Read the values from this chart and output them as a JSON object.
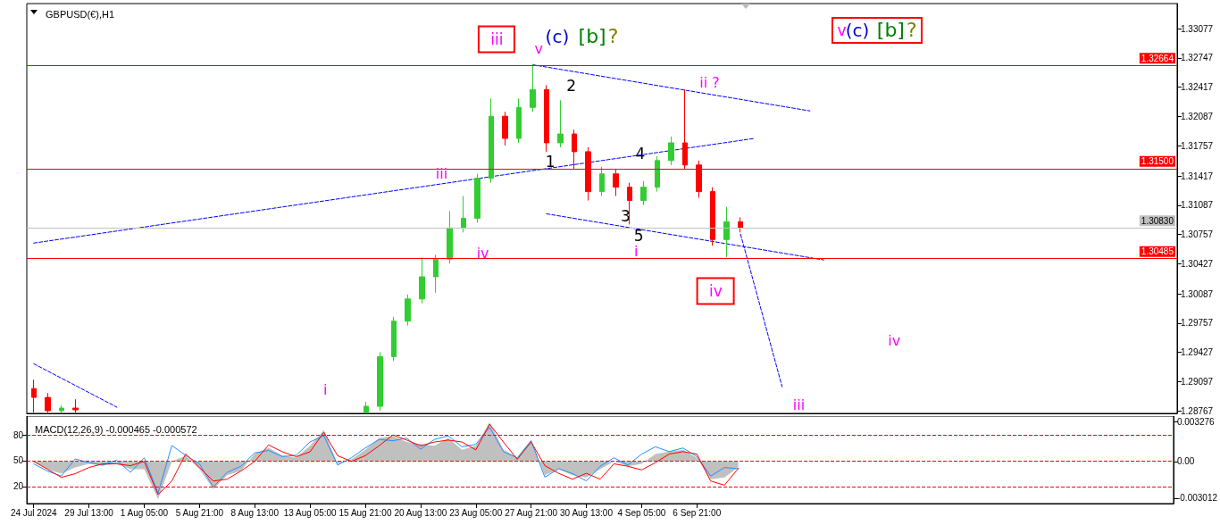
{
  "chart_data": [
    {
      "type": "candlestick",
      "title": "GBPUSD(€),H1",
      "categories": [
        null,
        null,
        null,
        null,
        null,
        null,
        null,
        null,
        null,
        null,
        null,
        null,
        null,
        null,
        null,
        null,
        null,
        null,
        null,
        null,
        null,
        null,
        null,
        null,
        null,
        null,
        null,
        null,
        null,
        null,
        null,
        null,
        null,
        null,
        null,
        null,
        null,
        null,
        null,
        null,
        null,
        null,
        null,
        null,
        null,
        null,
        null,
        null,
        null,
        null,
        null,
        null,
        null,
        null,
        null,
        null,
        null,
        null,
        null,
        null,
        null,
        null,
        null,
        null,
        null,
        null,
        null,
        null,
        null,
        null,
        null,
        null,
        null,
        null,
        null,
        null,
        null,
        null,
        null,
        null,
        null,
        null,
        null
      ],
      "ohlc": [
        [
          1.2902,
          1.2912,
          1.2875,
          1.2892
        ],
        [
          1.2892,
          1.2897,
          1.2875,
          1.2877
        ],
        [
          1.2877,
          1.2883,
          1.2875,
          1.288
        ],
        [
          1.288,
          1.289,
          1.2875,
          1.2878
        ],
        null,
        null,
        null,
        null,
        null,
        null,
        null,
        null,
        null,
        null,
        null,
        null,
        null,
        null,
        null,
        null,
        null,
        null,
        null,
        null,
        [
          1.2875,
          1.2887,
          1.2875,
          1.2882
        ],
        [
          1.2882,
          1.2943,
          1.2877,
          1.2938
        ],
        [
          1.2938,
          1.2983,
          1.2933,
          1.2978
        ],
        [
          1.2978,
          1.3008,
          1.2973,
          1.3003
        ],
        [
          1.3003,
          1.305,
          1.2998,
          1.3028
        ],
        [
          1.3028,
          1.3053,
          1.301,
          1.3048
        ],
        [
          1.3048,
          1.3102,
          1.3043,
          1.3083
        ],
        [
          1.3083,
          1.3119,
          1.3078,
          1.3094
        ],
        [
          1.3094,
          1.3144,
          1.3089,
          1.3139
        ],
        [
          1.3139,
          1.3229,
          1.3134,
          1.3209
        ],
        [
          1.3209,
          1.3214,
          1.3176,
          1.3184
        ],
        [
          1.3184,
          1.3229,
          1.3179,
          1.3219
        ],
        [
          1.3219,
          1.3268,
          1.3214,
          1.3239
        ],
        [
          1.3239,
          1.3244,
          1.3169,
          1.3179
        ],
        [
          1.3179,
          1.3227,
          1.3174,
          1.3189
        ],
        [
          1.3189,
          1.3194,
          1.3149,
          1.3169
        ],
        [
          1.3169,
          1.3174,
          1.3114,
          1.3124
        ],
        [
          1.3124,
          1.3152,
          1.3119,
          1.3144
        ],
        [
          1.3144,
          1.3149,
          1.3119,
          1.3129
        ],
        [
          1.3129,
          1.3134,
          1.3087,
          1.3114
        ],
        [
          1.3114,
          1.3136,
          1.3109,
          1.3129
        ],
        [
          1.3129,
          1.3164,
          1.3124,
          1.3159
        ],
        [
          1.3159,
          1.3186,
          1.3154,
          1.3179
        ],
        [
          1.3179,
          1.3239,
          1.3149,
          1.3154
        ],
        [
          1.3154,
          1.3159,
          1.3117,
          1.3124
        ],
        [
          1.3124,
          1.3129,
          1.3063,
          1.307
        ],
        [
          1.307,
          1.3107,
          1.305,
          1.309
        ],
        [
          1.309,
          1.3095,
          1.3078,
          1.3083
        ],
        null,
        null,
        null,
        null,
        null,
        null,
        null,
        null,
        null,
        null,
        null,
        null,
        null,
        null,
        null,
        null,
        null,
        null,
        null,
        null,
        null,
        null,
        null,
        null,
        null,
        null,
        null,
        null,
        null,
        null,
        null
      ],
      "colors": [
        "#ff0000",
        "#ff0000",
        "#32cd32",
        "#ff0000",
        null,
        null,
        null,
        null,
        null,
        null,
        null,
        null,
        null,
        null,
        null,
        null,
        null,
        null,
        null,
        null,
        null,
        null,
        null,
        null,
        "#32cd32",
        "#32cd32",
        "#32cd32",
        "#32cd32",
        "#32cd32",
        "#32cd32",
        "#32cd32",
        "#32cd32",
        "#32cd32",
        "#32cd32",
        "#ff0000",
        "#32cd32",
        "#32cd32",
        "#ff0000",
        "#32cd32",
        "#ff0000",
        "#ff0000",
        "#32cd32",
        "#ff0000",
        "#ff0000",
        "#32cd32",
        "#32cd32",
        "#32cd32",
        "#ff0000",
        "#ff0000",
        "#ff0000",
        "#32cd32",
        "#ff0000",
        null,
        null,
        null,
        null,
        null,
        null,
        null,
        null,
        null,
        null,
        null,
        null,
        null,
        null,
        null,
        null,
        null,
        null,
        null,
        null,
        null,
        null,
        null,
        null,
        null,
        null,
        null,
        null,
        null,
        null,
        null
      ],
      "series": [
        {
          "type": "line",
          "color": "#0000ff",
          "line_style": "dashed",
          "values": [
            1.3066,
            null,
            null,
            null,
            null,
            null,
            null,
            null,
            null,
            null,
            null,
            null,
            null,
            null,
            null,
            null,
            null,
            null,
            null,
            null,
            null,
            null,
            null,
            null,
            null,
            null,
            null,
            null,
            null,
            null,
            null,
            null,
            null,
            null,
            null,
            null,
            null,
            null,
            null,
            null,
            null,
            null,
            null,
            null,
            null,
            null,
            null,
            null,
            null,
            null,
            null,
            null,
            1.3184,
            null,
            null,
            null,
            null,
            null,
            null,
            null,
            null,
            null,
            null,
            null,
            null,
            null,
            null,
            null,
            null,
            null,
            null,
            null,
            null,
            null,
            null,
            null,
            null,
            null,
            null,
            null,
            null,
            null,
            null
          ]
        },
        {
          "type": "line",
          "color": "#0000ff",
          "line_style": "dashed",
          "values": [
            null,
            null,
            null,
            null,
            null,
            null,
            null,
            null,
            null,
            null,
            null,
            null,
            null,
            null,
            null,
            null,
            null,
            null,
            null,
            null,
            null,
            null,
            null,
            null,
            null,
            null,
            null,
            null,
            null,
            null,
            null,
            null,
            null,
            null,
            null,
            null,
            1.3267,
            null,
            null,
            null,
            null,
            null,
            null,
            null,
            null,
            null,
            null,
            null,
            null,
            null,
            null,
            null,
            null,
            null,
            null,
            null,
            1.3215,
            null,
            null,
            null,
            null,
            null,
            null,
            null,
            null,
            null,
            null,
            null,
            null,
            null,
            null,
            null,
            null,
            null,
            null,
            null,
            null,
            null,
            null,
            null,
            null,
            null,
            null
          ]
        },
        {
          "type": "line",
          "color": "#0000ff",
          "line_style": "dashed",
          "values": [
            null,
            null,
            null,
            null,
            null,
            null,
            null,
            null,
            null,
            null,
            null,
            null,
            null,
            null,
            null,
            null,
            null,
            null,
            null,
            null,
            null,
            null,
            null,
            null,
            null,
            null,
            null,
            null,
            null,
            null,
            null,
            null,
            null,
            null,
            null,
            null,
            null,
            1.3099,
            null,
            null,
            null,
            null,
            null,
            null,
            null,
            null,
            null,
            null,
            null,
            null,
            null,
            null,
            null,
            null,
            null,
            null,
            null,
            1.3047,
            null,
            null,
            null,
            null,
            null,
            null,
            null,
            null,
            null,
            null,
            null,
            null,
            null,
            null,
            null,
            null,
            null,
            null,
            null,
            null,
            null,
            null,
            null,
            null,
            null
          ]
        },
        {
          "type": "line",
          "color": "#0000ff",
          "line_style": "dashed",
          "values": [
            1.293,
            null,
            null,
            null,
            null,
            null,
            1.2881,
            null,
            null,
            null,
            null,
            null,
            null,
            null,
            null,
            null,
            null,
            null,
            null,
            null,
            null,
            null,
            null,
            null,
            null,
            null,
            null,
            null,
            null,
            null,
            null,
            null,
            null,
            null,
            null,
            null,
            null,
            null,
            null,
            null,
            null,
            null,
            null,
            null,
            null,
            null,
            null,
            null,
            null,
            null,
            null,
            null,
            null,
            null,
            null,
            null,
            null,
            null,
            null,
            null,
            null,
            null,
            null,
            null,
            null,
            null,
            null,
            null,
            null,
            null,
            null,
            null,
            null,
            null,
            null,
            null,
            null,
            null,
            null,
            null,
            null,
            null,
            null
          ]
        },
        {
          "type": "line",
          "color": "#0000ff",
          "line_style": "dashed",
          "values": [
            null,
            null,
            null,
            null,
            null,
            null,
            null,
            null,
            null,
            null,
            null,
            null,
            null,
            null,
            null,
            null,
            null,
            null,
            null,
            null,
            null,
            null,
            null,
            null,
            null,
            null,
            null,
            null,
            null,
            null,
            null,
            null,
            null,
            null,
            null,
            null,
            null,
            null,
            null,
            null,
            null,
            null,
            null,
            null,
            null,
            null,
            null,
            null,
            null,
            null,
            null,
            1.3076,
            null,
            null,
            1.2904,
            null,
            null,
            null,
            null,
            null,
            null,
            null,
            null,
            null,
            null,
            null,
            null,
            null,
            null,
            null,
            null,
            null,
            null,
            null,
            null,
            null,
            null,
            null,
            null,
            null,
            null,
            null,
            null
          ]
        }
      ],
      "ref_lines": [
        {
          "axis": "y",
          "value": 1.32664,
          "label": "1.32664",
          "color": "#ff0000"
        },
        {
          "axis": "y",
          "value": 1.315,
          "label": "1.31500",
          "color": "#ff0000"
        },
        {
          "axis": "y",
          "value": 1.30485,
          "label": "1.30485",
          "color": "#ff0000"
        },
        {
          "axis": "y",
          "value": 1.3083,
          "label": "1.30830",
          "color": "#c0c0c0"
        }
      ],
      "annotations": [
        "iii",
        "v",
        "(c)",
        "[b]",
        "?",
        "2",
        "ii ?",
        "1",
        "4",
        "iii",
        "3",
        "5",
        "iv",
        "i",
        "iv",
        "iv",
        "iii",
        "i",
        "v",
        "(c)",
        "[b]",
        "?"
      ],
      "ylim": [
        1.2874,
        1.3336
      ],
      "yticks": [
        1.28767,
        1.29097,
        1.29427,
        1.29757,
        1.30087,
        1.30427,
        1.30757,
        1.31087,
        1.31417,
        1.31757,
        1.32087,
        1.32417,
        1.32747,
        1.33077
      ],
      "tick_labels": "y"
    },
    {
      "type": "line",
      "title": "MACD(12,26,9) -0.000465 -0.000572",
      "categories": [
        "24 Jul 2024",
        null,
        null,
        null,
        "29 Jul 13:00",
        null,
        null,
        null,
        "1 Aug 05:00",
        null,
        null,
        null,
        "5 Aug 21:00",
        null,
        null,
        null,
        "8 Aug 13:00",
        null,
        null,
        null,
        "13 Aug 05:00",
        null,
        null,
        null,
        "15 Aug 21:00",
        null,
        null,
        null,
        "20 Aug 13:00",
        null,
        null,
        null,
        "23 Aug 05:00",
        null,
        null,
        null,
        "27 Aug 21:00",
        null,
        null,
        null,
        "30 Aug 13:00",
        null,
        null,
        null,
        "4 Sep 05:00",
        null,
        null,
        null,
        "6 Sep 21:00",
        null,
        null,
        null,
        null,
        null,
        null,
        null,
        null,
        null,
        null,
        null,
        null,
        null,
        null,
        null,
        null,
        null,
        null,
        null,
        null,
        null,
        null,
        null,
        null,
        null,
        null,
        null,
        null,
        null,
        null,
        null,
        null,
        null,
        null
      ],
      "series": [
        {
          "type": "area",
          "color": "#c0c0c0",
          "values": [
            0,
            -0.00064,
            -0.00101,
            -0.0005,
            -0.0002,
            -0.00035,
            -0.0002,
            -0.00064,
            -0.00064,
            -0.00309,
            0,
            0.00047,
            -0.00064,
            -0.00227,
            -0.00114,
            -0.00079,
            0.00063,
            0.00111,
            0.00047,
            0.00032,
            0.00128,
            0.00256,
            -0.0002,
            0.00017,
            0.00095,
            0.00192,
            0.00209,
            0.00159,
            0.00143,
            0.00128,
            0.00192,
            0.00095,
            0.00128,
            0.0032,
            0.00095,
            0.00032,
            0.00175,
            -0.00114,
            -0.00064,
            -0.00114,
            -0.00131,
            -0.00064,
            0,
            -0.0004,
            -0.0002,
            0.0006,
            0.0008,
            0.00095,
            0.0003,
            -0.00146,
            -0.00131,
            -0.00047,
            null,
            null,
            null,
            null,
            null,
            null,
            null,
            null,
            null,
            null,
            null,
            null,
            null,
            null,
            null,
            null,
            null,
            null,
            null,
            null,
            null,
            null,
            null,
            null,
            null,
            null,
            null,
            null,
            null,
            null,
            null
          ]
        },
        {
          "type": "line",
          "color": "#1e90ff",
          "values": [
            -0.0002,
            -0.0008,
            -0.0012,
            0.0002,
            -0.0001,
            -0.0003,
            0.0001,
            -0.0009,
            0.0003,
            -0.0026,
            0.0013,
            0.0005,
            -0.0002,
            -0.0021,
            -0.0009,
            -0.0004,
            0.0007,
            0.0009,
            0.0004,
            0.0005,
            0.0016,
            0.0021,
            -0.0003,
            0.0003,
            0.0011,
            0.0018,
            0.0017,
            0.0019,
            0.001,
            0.0018,
            0.0021,
            0.0012,
            0.0014,
            0.0028,
            0.0008,
            0.0003,
            0.0017,
            -0.0013,
            -0.0006,
            -0.001,
            -0.0016,
            -0.0004,
            0.0003,
            -0.0003,
            0.0006,
            0.0012,
            0.0008,
            0.0011,
            0.0004,
            -0.0012,
            -0.0005,
            -0.0006,
            null,
            null,
            null,
            null,
            null,
            null,
            null,
            null,
            null,
            null,
            null,
            null,
            null,
            null,
            null,
            null,
            null,
            null,
            null,
            null,
            null,
            null,
            null,
            null,
            null,
            null,
            null,
            null,
            null,
            null,
            null
          ]
        },
        {
          "type": "line",
          "color": "#ff0000",
          "values": [
            0,
            -0.00064,
            -0.00131,
            -0.00101,
            -0.0005,
            -0.0002,
            -0.0002,
            -0.00035,
            0,
            -0.00272,
            -0.00161,
            0.00061,
            -0.0005,
            -0.00161,
            -0.00146,
            -0.00079,
            0,
            0.00135,
            0.00079,
            0.00039,
            0.00079,
            0.00239,
            0.00047,
            0,
            0.00047,
            0.00128,
            0.00217,
            0.00175,
            0.00128,
            0.00159,
            0.00175,
            0.00159,
            0.00095,
            0.00306,
            0.00159,
            0.00017,
            0.00159,
            -0.00035,
            -0.00098,
            -0.00146,
            -0.00098,
            -0.00146,
            -0.0002,
            -0.0004,
            -0.0007,
            -0.0001,
            0.0006,
            0.0008,
            0.0006,
            -0.00161,
            -0.00195,
            -0.00057,
            null,
            null,
            null,
            null,
            null,
            null,
            null,
            null,
            null,
            null,
            null,
            null,
            null,
            null,
            null,
            null,
            null,
            null,
            null,
            null,
            null,
            null,
            null,
            null,
            null,
            null,
            null,
            null,
            null,
            null,
            null
          ]
        }
      ],
      "ref_lines": [
        {
          "axis": "y2",
          "value": 80,
          "color": "#ff0000",
          "line_style": "dashed"
        },
        {
          "axis": "y2",
          "value": 50,
          "color": "#ff0000",
          "line_style": "dashed"
        },
        {
          "axis": "y2",
          "value": 20,
          "color": "#ff0000",
          "line_style": "dashed"
        }
      ],
      "ylim": [
        -0.00346,
        0.00372
      ],
      "yticks": [
        -0.003012,
        {
          "value": 0,
          "label": "0.00"
        },
        0.003276
      ],
      "y2lim": [
        0,
        102
      ],
      "y2ticks": [
        20,
        50,
        80
      ]
    }
  ]
}
